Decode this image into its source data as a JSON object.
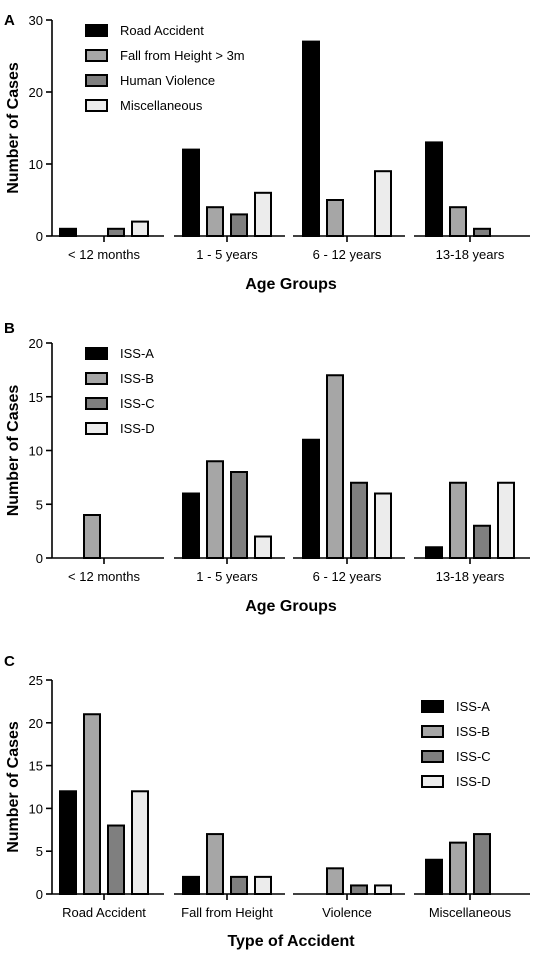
{
  "chart_data": [
    {
      "panel": "A",
      "type": "bar",
      "xlabel": "Age Groups",
      "ylabel": "Number of Cases",
      "categories": [
        "< 12 months",
        "1 - 5 years",
        "6 - 12 years",
        "13-18 years"
      ],
      "ylim": [
        0,
        30
      ],
      "yticks": [
        0,
        10,
        20,
        30
      ],
      "legend_position": "top-left",
      "grid": false,
      "series": [
        {
          "name": "Road Accident",
          "color": "#000000",
          "values": [
            1,
            12,
            27,
            13
          ]
        },
        {
          "name": "Fall from Height > 3m",
          "color": "#a6a6a6",
          "values": [
            0,
            4,
            5,
            4
          ]
        },
        {
          "name": "Human Violence",
          "color": "#7f7f7f",
          "values": [
            1,
            3,
            0,
            1
          ]
        },
        {
          "name": "Miscellaneous",
          "color": "#ececec",
          "values": [
            2,
            6,
            9,
            0
          ]
        }
      ]
    },
    {
      "panel": "B",
      "type": "bar",
      "xlabel": "Age Groups",
      "ylabel": "Number of Cases",
      "categories": [
        "< 12 months",
        "1 - 5 years",
        "6 - 12 years",
        "13-18 years"
      ],
      "ylim": [
        0,
        20
      ],
      "yticks": [
        0,
        5,
        10,
        15,
        20
      ],
      "legend_position": "top-left",
      "grid": false,
      "series": [
        {
          "name": "ISS-A",
          "color": "#000000",
          "values": [
            0,
            6,
            11,
            1
          ]
        },
        {
          "name": "ISS-B",
          "color": "#a6a6a6",
          "values": [
            4,
            9,
            17,
            7
          ]
        },
        {
          "name": "ISS-C",
          "color": "#7f7f7f",
          "values": [
            0,
            8,
            7,
            3
          ]
        },
        {
          "name": "ISS-D",
          "color": "#ececec",
          "values": [
            0,
            2,
            6,
            7
          ]
        }
      ]
    },
    {
      "panel": "C",
      "type": "bar",
      "xlabel": "Type of Accident",
      "ylabel": "Number of Cases",
      "categories": [
        "Road Accident",
        "Fall from Height",
        "Violence",
        "Miscellaneous"
      ],
      "ylim": [
        0,
        25
      ],
      "yticks": [
        0,
        5,
        10,
        15,
        20,
        25
      ],
      "legend_position": "top-right",
      "grid": false,
      "series": [
        {
          "name": "ISS-A",
          "color": "#000000",
          "values": [
            12,
            2,
            0,
            4
          ]
        },
        {
          "name": "ISS-B",
          "color": "#a6a6a6",
          "values": [
            21,
            7,
            3,
            6
          ]
        },
        {
          "name": "ISS-C",
          "color": "#7f7f7f",
          "values": [
            8,
            2,
            1,
            7
          ]
        },
        {
          "name": "ISS-D",
          "color": "#ececec",
          "values": [
            12,
            2,
            1,
            0
          ]
        }
      ]
    }
  ]
}
